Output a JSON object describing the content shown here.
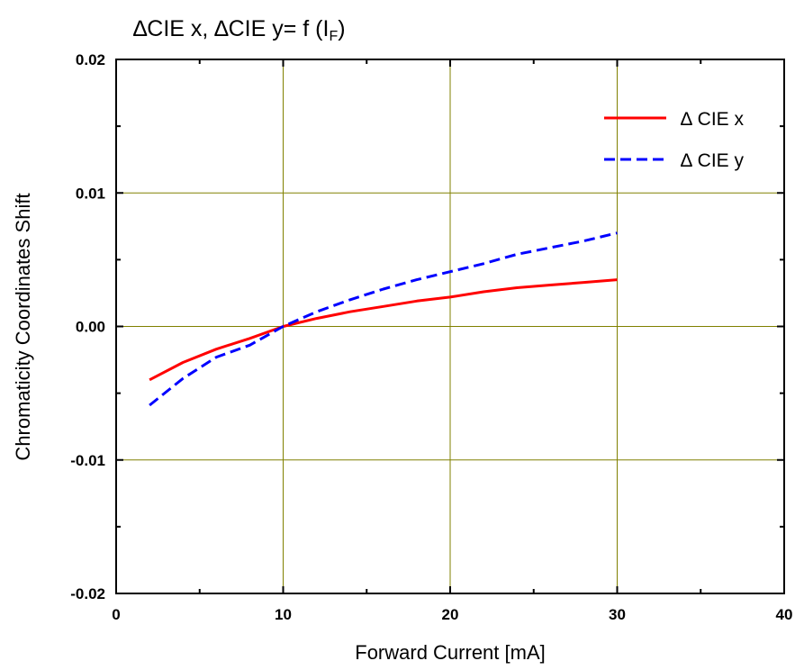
{
  "chart_data": {
    "type": "line",
    "title": {
      "pre": "∆CIE x, ∆CIE y= f (I",
      "sub": "F",
      "post": ")"
    },
    "xlabel": "Forward Current [mA]",
    "ylabel": "Chromaticity Coordinates Shift",
    "xlim": [
      0,
      40
    ],
    "ylim": [
      -0.02,
      0.02
    ],
    "x_ticks": [
      0,
      10,
      20,
      30,
      40
    ],
    "x_tick_labels": [
      "0",
      "10",
      "20",
      "30",
      "40"
    ],
    "y_ticks": [
      -0.02,
      -0.01,
      0.0,
      0.01,
      0.02
    ],
    "y_tick_labels": [
      "-0.02",
      "-0.01",
      "0.00",
      "0.01",
      "0.02"
    ],
    "grid": true,
    "grid_color": "#808000",
    "legend_position": "top-right",
    "series": [
      {
        "name": "∆ CIE x",
        "color": "#ff0000",
        "style": "solid",
        "x": [
          2,
          4,
          6,
          8,
          10,
          12,
          14,
          16,
          18,
          20,
          22,
          24,
          26,
          28,
          30
        ],
        "y": [
          -0.004,
          -0.0027,
          -0.0017,
          -0.0009,
          0.0,
          0.0006,
          0.0011,
          0.0015,
          0.0019,
          0.0022,
          0.0026,
          0.0029,
          0.0031,
          0.0033,
          0.0035
        ]
      },
      {
        "name": "∆ CIE y",
        "color": "#0000ff",
        "style": "dashed",
        "x": [
          2,
          4,
          6,
          8,
          10,
          12,
          14,
          16,
          18,
          20,
          22,
          24,
          26,
          28,
          30
        ],
        "y": [
          -0.0059,
          -0.0039,
          -0.0023,
          -0.0014,
          0.0,
          0.0011,
          0.002,
          0.0028,
          0.0035,
          0.0041,
          0.0047,
          0.0054,
          0.0059,
          0.0064,
          0.007
        ]
      }
    ]
  }
}
